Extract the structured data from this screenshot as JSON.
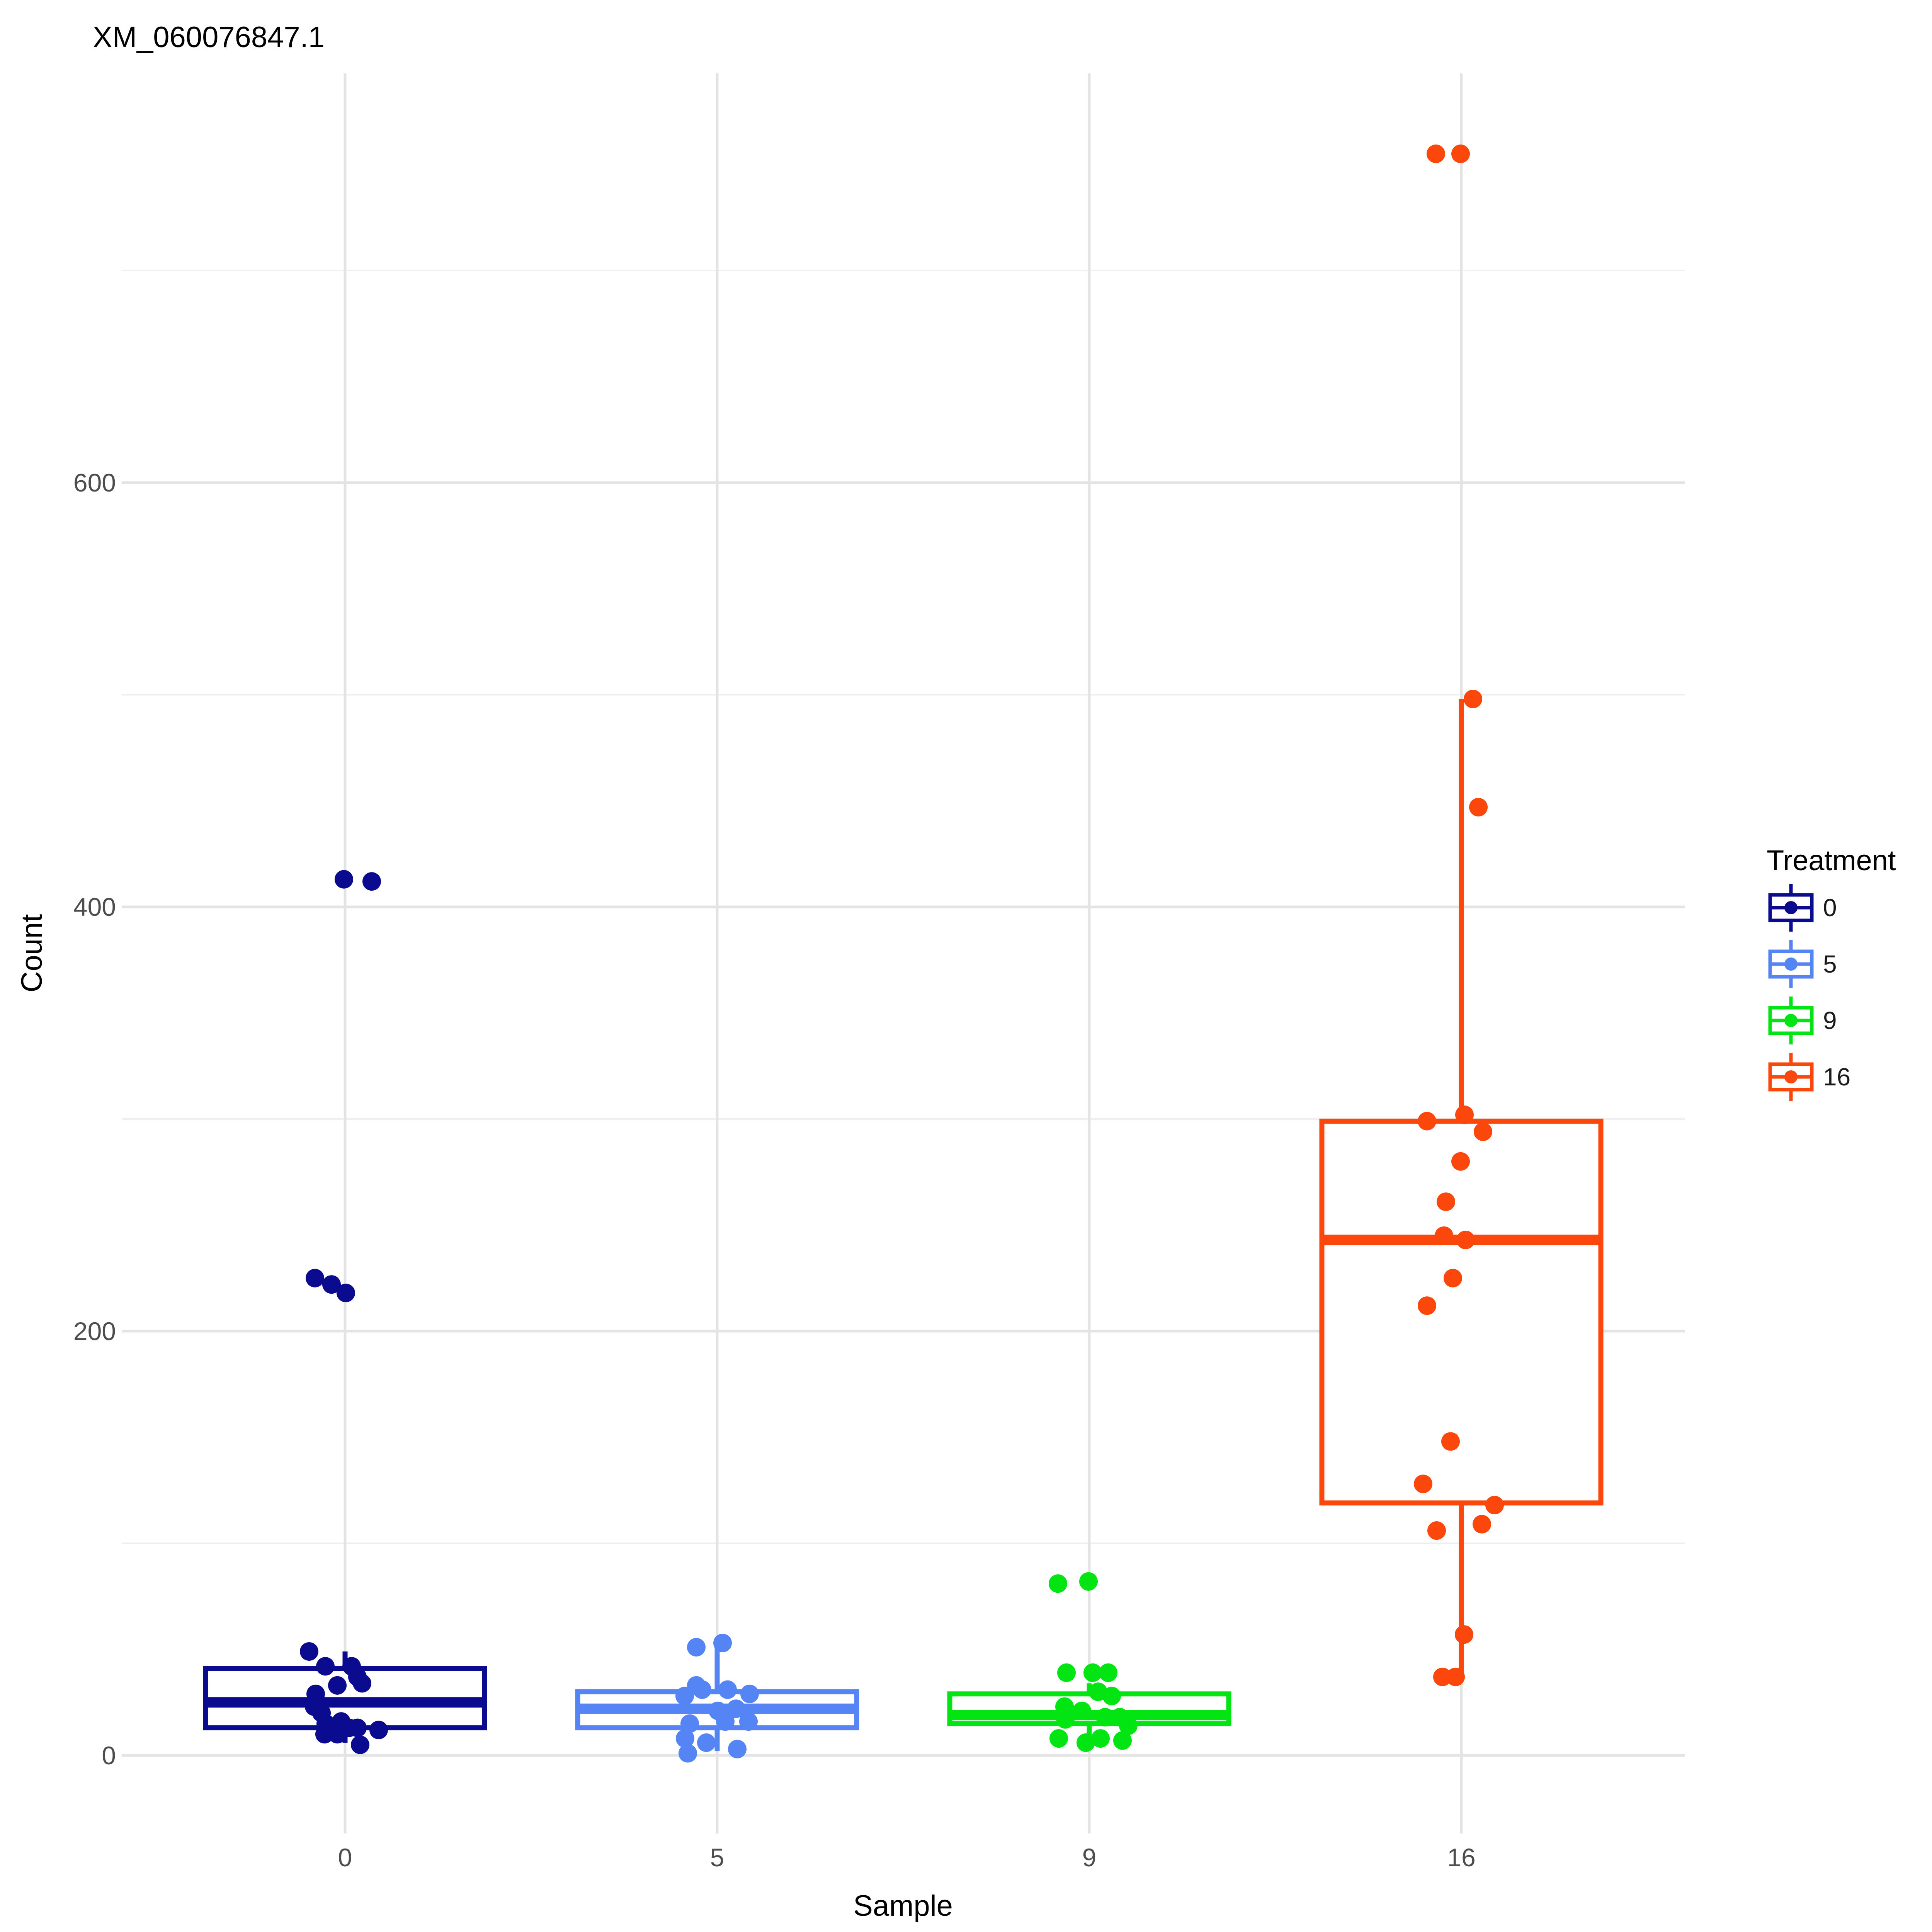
{
  "title": "XM_060076847.1",
  "chart_data": {
    "type": "boxplot",
    "title": "XM_060076847.1",
    "xlabel": "Sample",
    "ylabel": "Count",
    "legend_title": "Treatment",
    "legend_position": "right",
    "grid": "on",
    "categories": [
      "0",
      "5",
      "9",
      "16"
    ],
    "y_ticks": [
      0,
      200,
      400,
      600
    ],
    "y_minor_ticks": [
      100,
      300,
      500,
      700
    ],
    "ylim": [
      -35,
      790
    ],
    "series": [
      {
        "name": "0",
        "color": "#0b0b8f",
        "box": {
          "lower": 6,
          "q1": 13,
          "median": 25,
          "q3": 41,
          "upper": 49
        },
        "points": [
          [
            -93,
            49
          ],
          [
            -51,
            42
          ],
          [
            17,
            42
          ],
          [
            32,
            37
          ],
          [
            -20,
            33
          ],
          [
            44,
            34
          ],
          [
            -76,
            29
          ],
          [
            -80,
            23
          ],
          [
            -61,
            20
          ],
          [
            -50,
            15
          ],
          [
            -10,
            16
          ],
          [
            10,
            13
          ],
          [
            32,
            13
          ],
          [
            87,
            12
          ],
          [
            -53,
            10
          ],
          [
            -20,
            10
          ],
          [
            39,
            5
          ],
          [
            -78,
            225
          ],
          [
            -35,
            222
          ],
          [
            2,
            218
          ],
          [
            -3,
            413
          ],
          [
            69,
            412
          ]
        ]
      },
      {
        "name": "5",
        "color": "#5584f4",
        "box": {
          "lower": 2,
          "q1": 13,
          "median": 22,
          "q3": 30,
          "upper": 52
        },
        "points": [
          [
            -54,
            51
          ],
          [
            14,
            53
          ],
          [
            -54,
            33
          ],
          [
            -39,
            31
          ],
          [
            -84,
            28
          ],
          [
            27,
            31
          ],
          [
            84,
            29
          ],
          [
            2,
            21
          ],
          [
            49,
            22
          ],
          [
            21,
            16
          ],
          [
            81,
            16
          ],
          [
            -71,
            15
          ],
          [
            -83,
            8
          ],
          [
            -28,
            6
          ],
          [
            -76,
            1
          ],
          [
            52,
            3
          ]
        ]
      },
      {
        "name": "9",
        "color": "#02e512",
        "box": {
          "lower": 7,
          "q1": 15,
          "median": 19,
          "q3": 29,
          "upper": 34
        },
        "points": [
          [
            -81,
            81
          ],
          [
            -2,
            82
          ],
          [
            -59,
            39
          ],
          [
            9,
            39
          ],
          [
            49,
            39
          ],
          [
            23,
            30
          ],
          [
            58,
            28
          ],
          [
            -64,
            23
          ],
          [
            -19,
            21
          ],
          [
            -62,
            17
          ],
          [
            41,
            18
          ],
          [
            79,
            18
          ],
          [
            101,
            14
          ],
          [
            -79,
            8
          ],
          [
            29,
            8
          ],
          [
            86,
            7
          ],
          [
            -9,
            6
          ]
        ]
      },
      {
        "name": "16",
        "color": "#fb470c",
        "box": {
          "lower": 35,
          "q1": 119,
          "median": 243,
          "q3": 299,
          "upper": 498
        },
        "points": [
          [
            -66,
            755
          ],
          [
            -2,
            755
          ],
          [
            30,
            498
          ],
          [
            44,
            447
          ],
          [
            8,
            302
          ],
          [
            -89,
            299
          ],
          [
            56,
            294
          ],
          [
            -2,
            280
          ],
          [
            -40,
            261
          ],
          [
            -45,
            245
          ],
          [
            11,
            243
          ],
          [
            -22,
            225
          ],
          [
            -89,
            212
          ],
          [
            -28,
            148
          ],
          [
            -99,
            128
          ],
          [
            86,
            118
          ],
          [
            53,
            109
          ],
          [
            -64,
            106
          ],
          [
            7,
            57
          ],
          [
            -49,
            37
          ],
          [
            -15,
            37
          ]
        ]
      }
    ],
    "colors": {
      "grid_major": "#e4e4e4",
      "grid_minor": "#f0f0f0",
      "tick_text": "#4d4d4d",
      "title_text": "#000000"
    }
  }
}
